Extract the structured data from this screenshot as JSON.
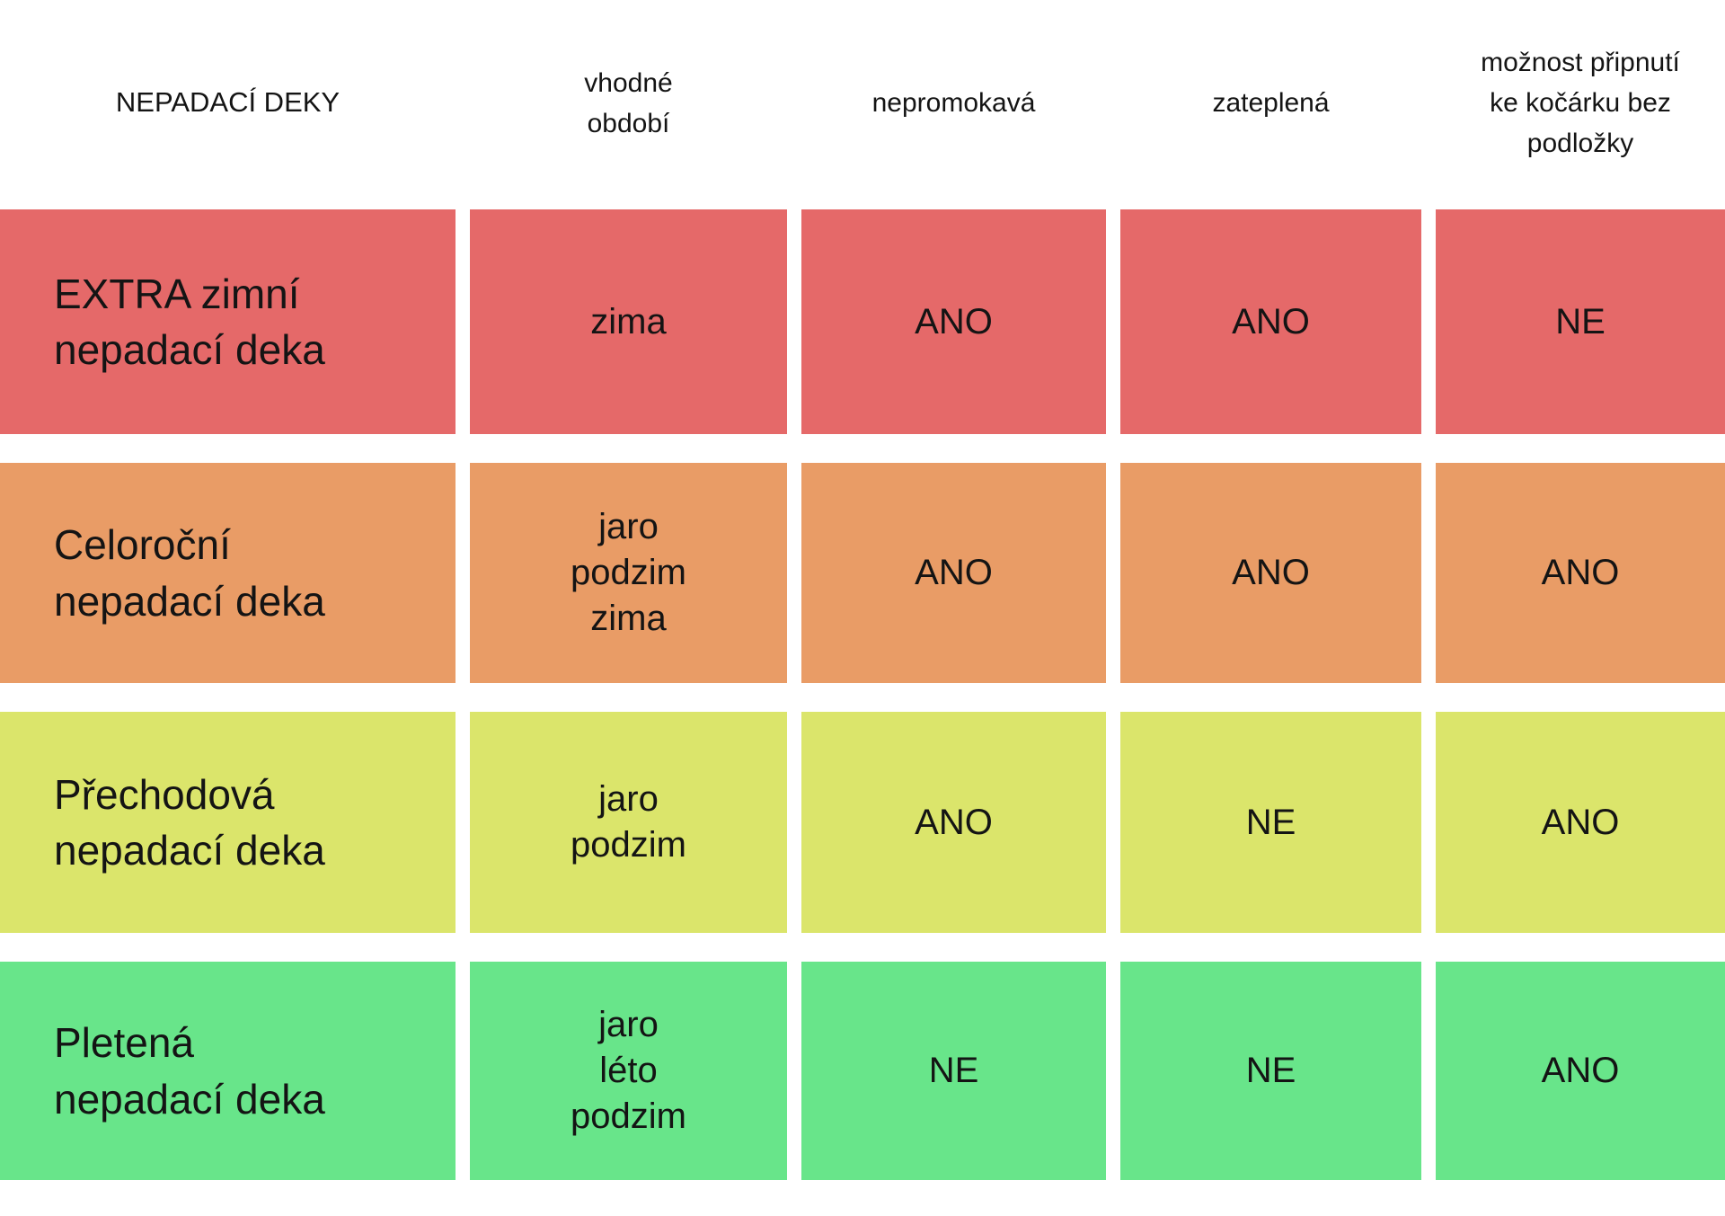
{
  "chart_data": {
    "type": "table",
    "title": "NEPADACÍ DEKY",
    "text_color": "#141414",
    "background": "#FFFFFF",
    "columns": [
      {
        "id": "nazev",
        "label": "NEPADACÍ DEKY",
        "lines": [
          "NEPADACÍ DEKY"
        ]
      },
      {
        "id": "obdobi",
        "label": "vhodné období",
        "lines": [
          "vhodné",
          "období"
        ]
      },
      {
        "id": "nepromokava",
        "label": "nepromokavá",
        "lines": [
          "nepromokavá"
        ]
      },
      {
        "id": "zateplena",
        "label": "zateplená",
        "lines": [
          "zateplená"
        ]
      },
      {
        "id": "pripnuti",
        "label": "možnost připnutí ke kočárku bez podložky",
        "lines": [
          "možnost připnutí",
          "ke kočárku bez",
          "podložky"
        ]
      }
    ],
    "rows": [
      {
        "name": "EXTRA zimní nepadací deka",
        "name_lines": [
          "EXTRA zimní",
          "nepadací deka"
        ],
        "obdobi": "zima",
        "obdobi_lines": [
          "zima"
        ],
        "nepromokava": "ANO",
        "zateplena": "ANO",
        "pripnuti": "NE",
        "row_color": "#E56969"
      },
      {
        "name": "Celoroční nepadací deka",
        "name_lines": [
          "Celoroční",
          "nepadací deka"
        ],
        "obdobi": "jaro podzim zima",
        "obdobi_lines": [
          "jaro",
          "podzim",
          "zima"
        ],
        "nepromokava": "ANO",
        "zateplena": "ANO",
        "pripnuti": "ANO",
        "row_color": "#E99C66"
      },
      {
        "name": "Přechodová nepadací deka",
        "name_lines": [
          "Přechodová",
          "nepadací deka"
        ],
        "obdobi": "jaro podzim",
        "obdobi_lines": [
          "jaro",
          "podzim"
        ],
        "nepromokava": "ANO",
        "zateplena": "NE",
        "pripnuti": "ANO",
        "row_color": "#DBE56B"
      },
      {
        "name": "Pletená nepadací deka",
        "name_lines": [
          "Pletená",
          "nepadací deka"
        ],
        "obdobi": "jaro léto podzim",
        "obdobi_lines": [
          "jaro",
          "léto",
          "podzim"
        ],
        "nepromokava": "NE",
        "zateplena": "NE",
        "pripnuti": "ANO",
        "row_color": "#68E58A"
      }
    ]
  }
}
